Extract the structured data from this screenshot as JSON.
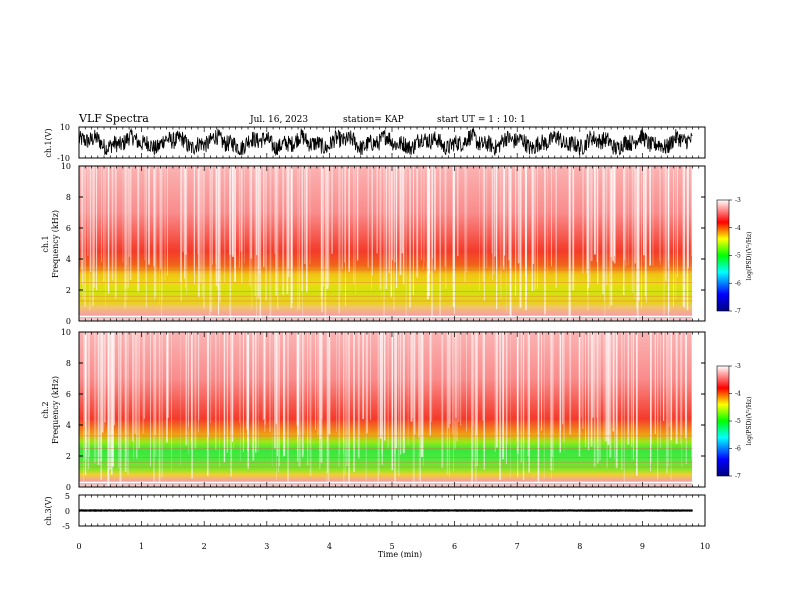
{
  "header": {
    "title": "VLF Spectra",
    "date": "Jul. 16, 2023",
    "station": "station= KAP",
    "start_ut": "start UT =  1 : 10: 1"
  },
  "chart_data": [
    {
      "id": "ch1_waveform",
      "type": "line",
      "ylabel": "ch.1(V)",
      "ylim": [
        -10,
        10
      ],
      "yticks": [
        "10",
        "-10"
      ],
      "data_extent_min": 9.8,
      "values_range": [
        -8,
        9
      ]
    },
    {
      "id": "ch1_spectrogram",
      "type": "heatmap",
      "ylabel": "ch.1\nFrequency (kHz)",
      "ylabel_line1": "ch.1",
      "ylabel_line2": "Frequency (kHz)",
      "ylim": [
        0,
        10
      ],
      "yticks": [
        "0",
        "2",
        "4",
        "6",
        "8",
        "10"
      ],
      "colorbar": {
        "label": "log(PSD)(V²/Hz)",
        "range": [
          -7,
          -3
        ],
        "ticks": [
          "-3",
          "-4",
          "-5",
          "-6",
          "-7"
        ]
      },
      "bands": [
        {
          "freq_khz": [
            0,
            0.9
          ],
          "level": -4.0
        },
        {
          "freq_khz": [
            0.9,
            3.2
          ],
          "level": -4.6
        },
        {
          "freq_khz": [
            3.2,
            4.2
          ],
          "level": -3.8
        },
        {
          "freq_khz": [
            4.2,
            10
          ],
          "level": -3.2
        }
      ]
    },
    {
      "id": "ch2_spectrogram",
      "type": "heatmap",
      "ylabel": "ch.2\nFrequency (kHz)",
      "ylabel_line1": "ch.2",
      "ylabel_line2": "Frequency (kHz)",
      "ylim": [
        0,
        10
      ],
      "yticks": [
        "0",
        "2",
        "4",
        "6",
        "8",
        "10"
      ],
      "colorbar": {
        "label": "log(PSD)(V²/Hz)",
        "range": [
          -7,
          -3
        ],
        "ticks": [
          "-3",
          "-4",
          "-5",
          "-6",
          "-7"
        ]
      },
      "bands": [
        {
          "freq_khz": [
            0,
            0.6
          ],
          "level": -4.2
        },
        {
          "freq_khz": [
            0.6,
            3.0
          ],
          "level": -5.1
        },
        {
          "freq_khz": [
            3.0,
            4.0
          ],
          "level": -4.1
        },
        {
          "freq_khz": [
            4.0,
            10
          ],
          "level": -3.2
        }
      ]
    },
    {
      "id": "ch3_waveform",
      "type": "line",
      "ylabel": "ch.3(V)",
      "ylim": [
        -5,
        5
      ],
      "yticks": [
        "5",
        "0",
        "-5"
      ],
      "values_range": [
        -0.4,
        0.4
      ]
    }
  ],
  "xaxis": {
    "label": "Time (min)",
    "range": [
      0,
      10
    ],
    "ticks": [
      "0",
      "1",
      "2",
      "3",
      "4",
      "5",
      "6",
      "7",
      "8",
      "9",
      "10"
    ]
  },
  "colors": {
    "trace": "#000000",
    "colormap": [
      "#00007f",
      "#0000ff",
      "#00ffff",
      "#00ff00",
      "#ffff00",
      "#ff0000",
      "#ffffff"
    ]
  }
}
